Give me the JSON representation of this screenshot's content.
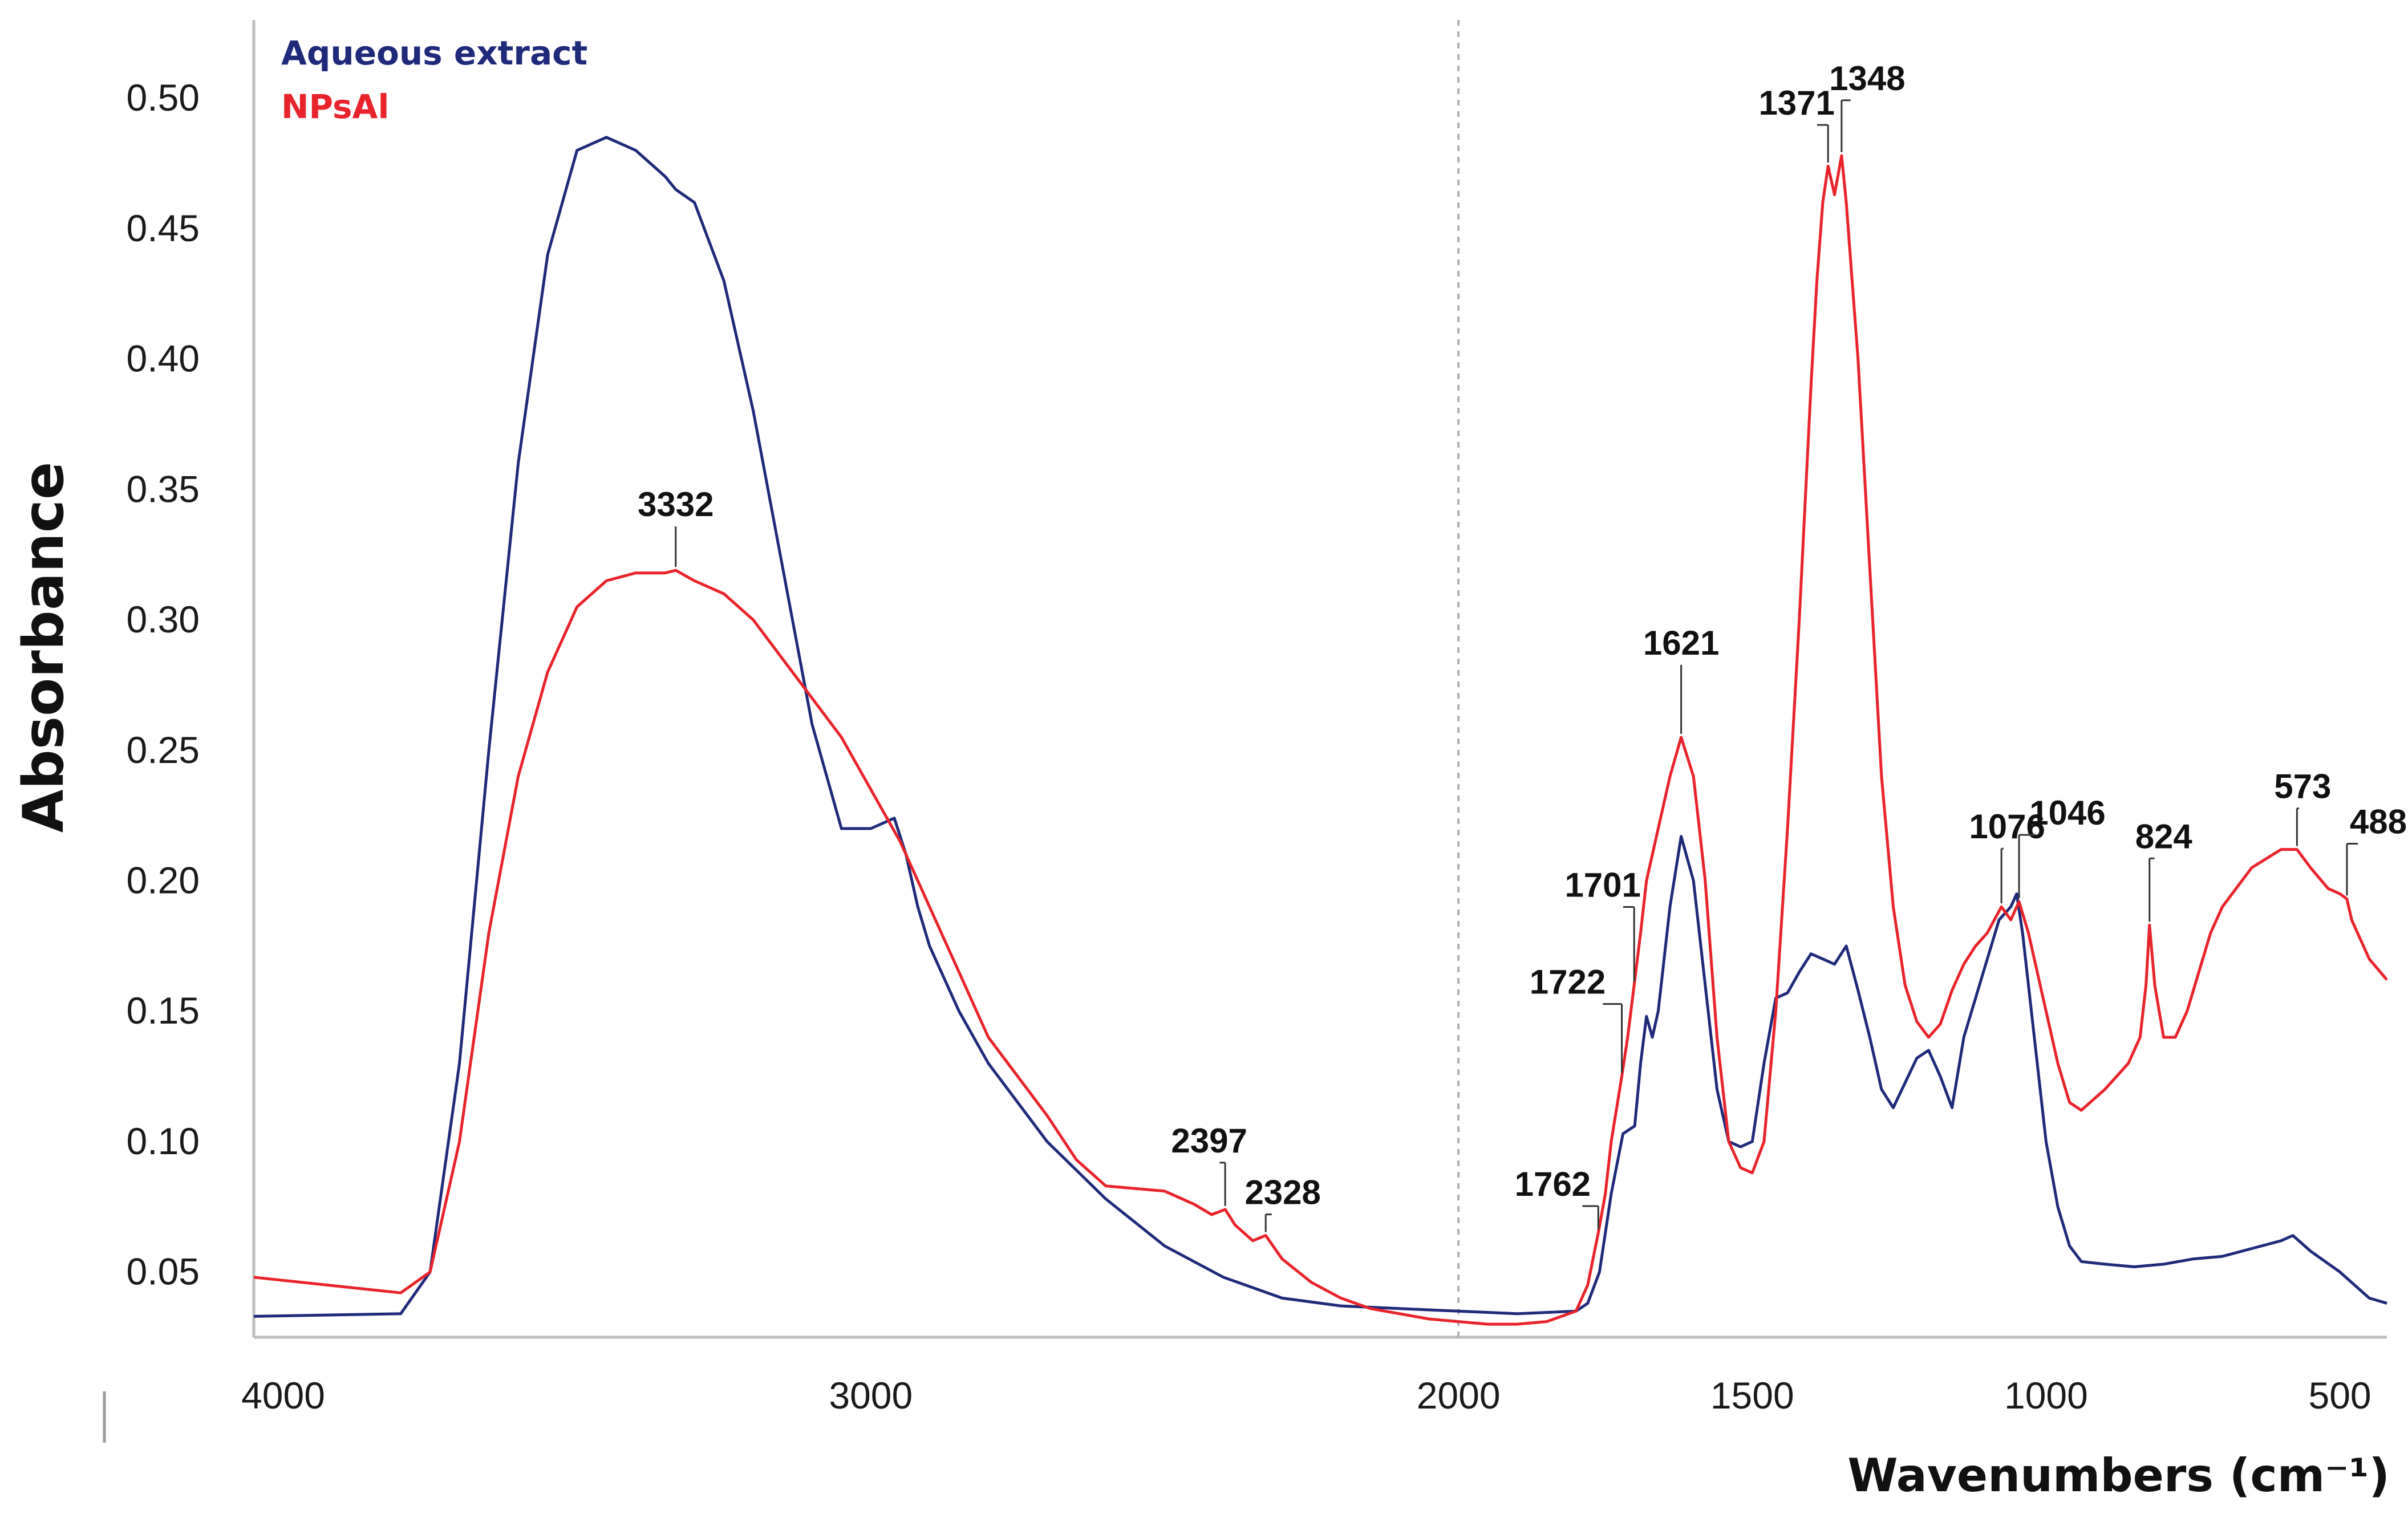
{
  "chart_data": {
    "type": "line",
    "title": "",
    "xlabel": "Wavenumbers (cm⁻¹)",
    "ylabel": "Absorbance",
    "xlim": [
      4050,
      420
    ],
    "ylim": [
      0.025,
      0.53
    ],
    "x_reversed": true,
    "grid": false,
    "x_ticks": [
      4000,
      3000,
      2000,
      1500,
      1000,
      500
    ],
    "x_tick_labels": [
      "4000",
      "3000",
      "2000",
      "1500",
      "1000",
      "500"
    ],
    "y_ticks": [
      0.05,
      0.1,
      0.15,
      0.2,
      0.25,
      0.3,
      0.35,
      0.4,
      0.45,
      0.5
    ],
    "y_tick_labels": [
      "0.05",
      "0.10",
      "0.15",
      "0.20",
      "0.25",
      "0.30",
      "0.35",
      "0.40",
      "0.45",
      "0.50"
    ],
    "divider_x": 2000,
    "legend": {
      "placement": "top-left"
    },
    "series": [
      {
        "name": "Aqueous extract",
        "color": "#1f2a7a",
        "x": [
          4050,
          3800,
          3750,
          3700,
          3650,
          3600,
          3550,
          3500,
          3450,
          3400,
          3350,
          3332,
          3300,
          3250,
          3200,
          3150,
          3100,
          3050,
          3000,
          2960,
          2940,
          2920,
          2900,
          2850,
          2800,
          2700,
          2600,
          2500,
          2400,
          2300,
          2200,
          2100,
          2000,
          1900,
          1800,
          1780,
          1760,
          1740,
          1720,
          1700,
          1690,
          1680,
          1670,
          1660,
          1650,
          1640,
          1621,
          1600,
          1580,
          1560,
          1540,
          1520,
          1500,
          1480,
          1460,
          1440,
          1420,
          1400,
          1380,
          1360,
          1340,
          1320,
          1300,
          1280,
          1260,
          1220,
          1200,
          1180,
          1160,
          1140,
          1120,
          1100,
          1080,
          1060,
          1050,
          1040,
          1020,
          1000,
          980,
          960,
          940,
          900,
          850,
          800,
          750,
          700,
          650,
          600,
          580,
          550,
          500,
          450,
          420
        ],
        "y": [
          0.033,
          0.034,
          0.05,
          0.13,
          0.25,
          0.36,
          0.44,
          0.48,
          0.485,
          0.48,
          0.47,
          0.465,
          0.46,
          0.43,
          0.38,
          0.32,
          0.26,
          0.22,
          0.22,
          0.224,
          0.21,
          0.19,
          0.175,
          0.15,
          0.13,
          0.1,
          0.078,
          0.06,
          0.048,
          0.04,
          0.037,
          0.036,
          0.035,
          0.034,
          0.035,
          0.038,
          0.05,
          0.08,
          0.103,
          0.106,
          0.13,
          0.148,
          0.14,
          0.15,
          0.17,
          0.19,
          0.217,
          0.2,
          0.16,
          0.12,
          0.1,
          0.098,
          0.1,
          0.13,
          0.155,
          0.157,
          0.165,
          0.172,
          0.17,
          0.168,
          0.175,
          0.158,
          0.14,
          0.12,
          0.113,
          0.132,
          0.135,
          0.125,
          0.113,
          0.14,
          0.155,
          0.17,
          0.185,
          0.19,
          0.195,
          0.18,
          0.14,
          0.1,
          0.075,
          0.06,
          0.054,
          0.053,
          0.052,
          0.053,
          0.055,
          0.056,
          0.059,
          0.062,
          0.064,
          0.058,
          0.05,
          0.04,
          0.038
        ]
      },
      {
        "name": "NPsAl",
        "color": "#e8232b",
        "x": [
          4050,
          3800,
          3750,
          3700,
          3650,
          3600,
          3550,
          3500,
          3450,
          3400,
          3350,
          3332,
          3300,
          3250,
          3200,
          3150,
          3100,
          3050,
          3000,
          2950,
          2900,
          2850,
          2800,
          2700,
          2650,
          2600,
          2550,
          2500,
          2450,
          2420,
          2397,
          2380,
          2350,
          2328,
          2300,
          2250,
          2200,
          2150,
          2100,
          2050,
          2000,
          1950,
          1900,
          1850,
          1800,
          1780,
          1762,
          1750,
          1740,
          1722,
          1712,
          1701,
          1690,
          1680,
          1660,
          1640,
          1621,
          1600,
          1580,
          1560,
          1540,
          1520,
          1500,
          1480,
          1460,
          1440,
          1420,
          1400,
          1390,
          1380,
          1371,
          1360,
          1348,
          1340,
          1320,
          1300,
          1280,
          1260,
          1240,
          1220,
          1200,
          1180,
          1160,
          1140,
          1120,
          1100,
          1076,
          1060,
          1046,
          1030,
          1000,
          980,
          960,
          940,
          920,
          900,
          880,
          860,
          840,
          830,
          824,
          815,
          800,
          780,
          760,
          740,
          720,
          700,
          650,
          600,
          573,
          550,
          520,
          500,
          488,
          480,
          450,
          420
        ],
        "y": [
          0.048,
          0.042,
          0.05,
          0.1,
          0.18,
          0.24,
          0.28,
          0.305,
          0.315,
          0.318,
          0.318,
          0.319,
          0.315,
          0.31,
          0.3,
          0.285,
          0.27,
          0.255,
          0.235,
          0.215,
          0.19,
          0.165,
          0.14,
          0.11,
          0.093,
          0.083,
          0.082,
          0.081,
          0.076,
          0.072,
          0.074,
          0.068,
          0.062,
          0.064,
          0.055,
          0.046,
          0.04,
          0.036,
          0.034,
          0.032,
          0.031,
          0.03,
          0.03,
          0.031,
          0.035,
          0.045,
          0.065,
          0.08,
          0.1,
          0.125,
          0.14,
          0.16,
          0.18,
          0.2,
          0.22,
          0.24,
          0.255,
          0.24,
          0.2,
          0.14,
          0.1,
          0.09,
          0.088,
          0.1,
          0.15,
          0.22,
          0.3,
          0.39,
          0.43,
          0.46,
          0.474,
          0.463,
          0.478,
          0.46,
          0.4,
          0.32,
          0.24,
          0.19,
          0.16,
          0.146,
          0.14,
          0.145,
          0.158,
          0.168,
          0.175,
          0.18,
          0.19,
          0.185,
          0.192,
          0.18,
          0.15,
          0.13,
          0.115,
          0.112,
          0.116,
          0.12,
          0.125,
          0.13,
          0.14,
          0.16,
          0.183,
          0.16,
          0.14,
          0.14,
          0.15,
          0.165,
          0.18,
          0.19,
          0.205,
          0.212,
          0.212,
          0.205,
          0.197,
          0.195,
          0.193,
          0.185,
          0.17,
          0.162
        ]
      }
    ],
    "annotations": [
      {
        "label": "3332",
        "x": 3332,
        "y": 0.319
      },
      {
        "label": "2397",
        "x": 2397,
        "y": 0.074
      },
      {
        "label": "2328",
        "x": 2328,
        "y": 0.064
      },
      {
        "label": "1762",
        "x": 1762,
        "y": 0.065
      },
      {
        "label": "1722",
        "x": 1722,
        "y": 0.125
      },
      {
        "label": "1701",
        "x": 1701,
        "y": 0.16
      },
      {
        "label": "1621",
        "x": 1621,
        "y": 0.255
      },
      {
        "label": "1371",
        "x": 1371,
        "y": 0.474
      },
      {
        "label": "1348",
        "x": 1348,
        "y": 0.478
      },
      {
        "label": "1076",
        "x": 1076,
        "y": 0.19
      },
      {
        "label": "1046",
        "x": 1046,
        "y": 0.192
      },
      {
        "label": "824",
        "x": 824,
        "y": 0.183
      },
      {
        "label": "573",
        "x": 573,
        "y": 0.212
      },
      {
        "label": "488",
        "x": 488,
        "y": 0.193
      }
    ]
  }
}
